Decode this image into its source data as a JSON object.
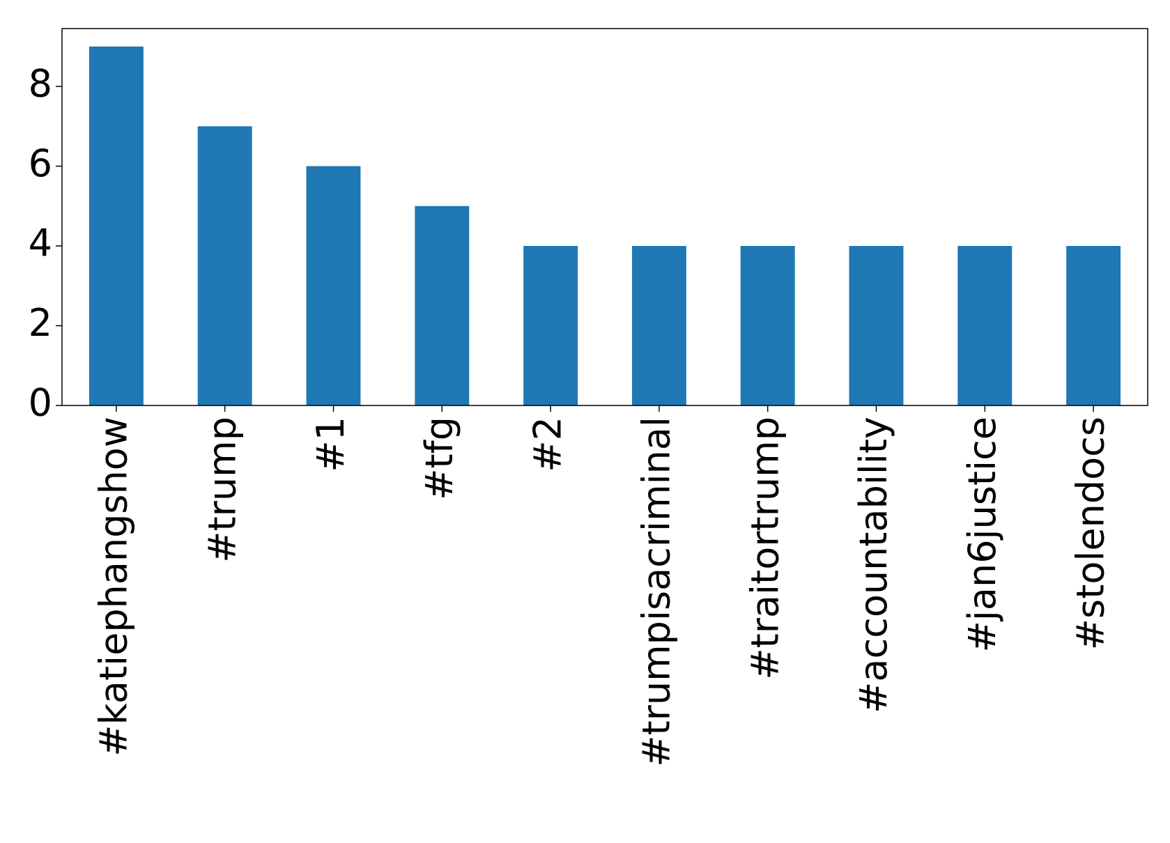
{
  "chart_data": {
    "type": "bar",
    "categories": [
      "#katiephangshow",
      "#trump",
      "#1",
      "#tfg",
      "#2",
      "#trumpisacriminal",
      "#traitortrump",
      "#accountability",
      "#jan6justice",
      "#stolendocs"
    ],
    "values": [
      9,
      7,
      6,
      5,
      4,
      4,
      4,
      4,
      4,
      4
    ],
    "color": "#1f77b4",
    "ylim": [
      0,
      9.45
    ],
    "yticks": [
      0,
      2,
      4,
      6,
      8
    ],
    "grid": false
  }
}
